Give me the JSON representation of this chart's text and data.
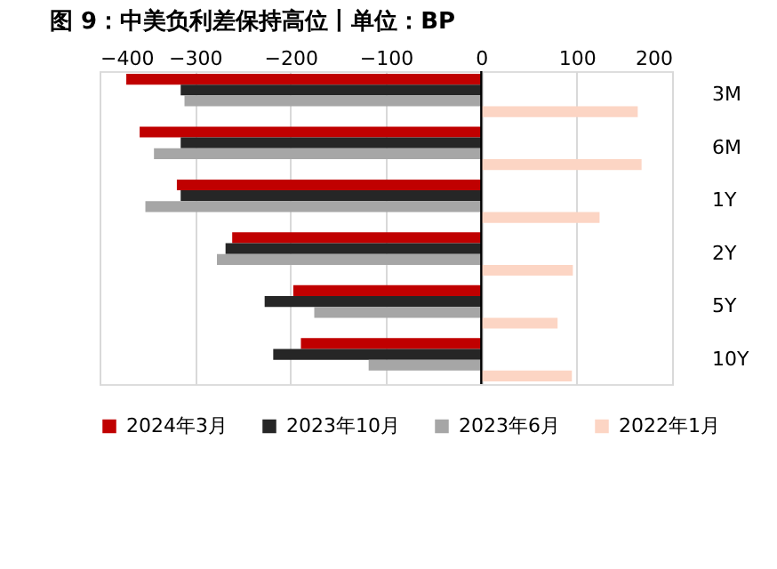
{
  "chart_data": {
    "type": "bar",
    "orientation": "horizontal",
    "title": "图 9：中美负利差保持高位丨单位：BP",
    "categories": [
      "3M",
      "6M",
      "1Y",
      "2Y",
      "5Y",
      "10Y"
    ],
    "series": [
      {
        "name": "2024年3月",
        "color": "#c00000",
        "values": [
          -372,
          -358,
          -319,
          -261,
          -197,
          -189
        ]
      },
      {
        "name": "2023年10月",
        "color": "#262626",
        "values": [
          -315,
          -315,
          -315,
          -268,
          -227,
          -218
        ]
      },
      {
        "name": "2023年6月",
        "color": "#a6a6a6",
        "values": [
          -311,
          -343,
          -352,
          -277,
          -175,
          -118
        ]
      },
      {
        "name": "2022年1月",
        "color": "#fcd5c4",
        "values": [
          164,
          168,
          124,
          96,
          80,
          95
        ]
      }
    ],
    "xlim": [
      -400,
      200
    ],
    "xticks": [
      -400,
      -300,
      -200,
      -100,
      0,
      100,
      200
    ],
    "grid": "x",
    "legend": "bottom"
  }
}
